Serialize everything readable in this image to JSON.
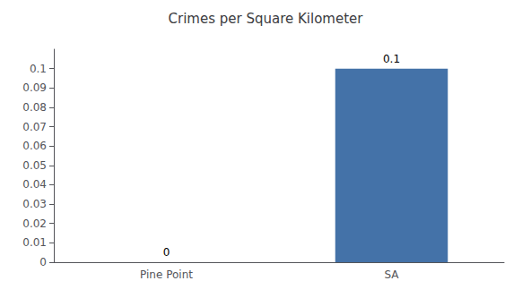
{
  "chart_data": {
    "type": "bar",
    "title": "Crimes per Square Kilometer",
    "categories": [
      "Pine Point",
      "SA"
    ],
    "values": [
      0,
      0.1
    ],
    "color": "#4472a8",
    "ylim": [
      0,
      0.11
    ],
    "yticks": [
      0,
      0.01,
      0.02,
      0.03,
      0.04,
      0.05,
      0.06,
      0.07,
      0.08,
      0.09,
      0.1
    ],
    "grid": false,
    "data_labels": true
  }
}
